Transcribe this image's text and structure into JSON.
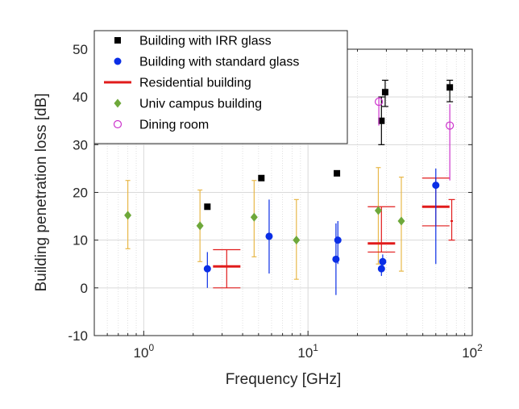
{
  "chart_data": {
    "type": "scatter",
    "xlabel": "Frequency [GHz]",
    "ylabel": "Building penetration loss [dB]",
    "xscale": "log",
    "xlim": [
      0.5,
      100
    ],
    "ylim": [
      -10,
      50
    ],
    "x_ticks": [
      {
        "value": 1,
        "base": "10",
        "exp": "0"
      },
      {
        "value": 10,
        "base": "10",
        "exp": "1"
      },
      {
        "value": 100,
        "base": "10",
        "exp": "2"
      }
    ],
    "y_ticks": [
      -10,
      0,
      10,
      20,
      30,
      40,
      50
    ],
    "grid": true,
    "legend_position": "top-left",
    "colors": {
      "irr": "#000000",
      "standard": "#0a2ee6",
      "residential": "#e11b1b",
      "campus": "#6ea83a",
      "campus_errorbar": "#e8b84a",
      "dining": "#cc33cc",
      "grid": "#d9d9d9",
      "axis": "#262626"
    },
    "series": [
      {
        "name": "Building with IRR glass",
        "marker": "square",
        "points": [
          {
            "x": 2.44,
            "y": 17
          },
          {
            "x": 5.2,
            "y": 23
          },
          {
            "x": 15,
            "y": 24
          },
          {
            "x": 28,
            "y": 35,
            "low": 30,
            "high": 40
          },
          {
            "x": 29.5,
            "y": 41,
            "low": 38,
            "high": 43.5
          },
          {
            "x": 73,
            "y": 42,
            "low": 39,
            "high": 43.5
          }
        ]
      },
      {
        "name": "Building with standard glass",
        "marker": "circle",
        "points": [
          {
            "x": 2.44,
            "y": 4,
            "low": 0,
            "high": 7.5
          },
          {
            "x": 5.8,
            "y": 10.8,
            "low": 3,
            "high": 18.5
          },
          {
            "x": 14.8,
            "y": 6,
            "low": -1.5,
            "high": 13.5
          },
          {
            "x": 15.2,
            "y": 10,
            "low": 5,
            "high": 14
          },
          {
            "x": 28,
            "y": 4,
            "low": 2.5,
            "high": 6
          },
          {
            "x": 28.5,
            "y": 5.5,
            "low": 3.5,
            "high": 7
          },
          {
            "x": 60,
            "y": 21.5,
            "low": 5,
            "high": 25
          }
        ]
      },
      {
        "name": "Residential building",
        "marker": "line",
        "points": [
          {
            "x": 3.2,
            "y": 4.5,
            "low": 0,
            "high": 8
          },
          {
            "x": 28,
            "y": 9.3,
            "low": 7.5,
            "high": 17
          },
          {
            "x": 60,
            "y": 17,
            "low": 13,
            "high": 23
          },
          {
            "x": 75,
            "y": 14,
            "low": 10,
            "high": 18.5
          }
        ]
      },
      {
        "name": "Univ campus building",
        "marker": "diamond",
        "points": [
          {
            "x": 0.8,
            "y": 15.2,
            "low": 8.2,
            "high": 22.5
          },
          {
            "x": 2.2,
            "y": 13,
            "low": 5.5,
            "high": 20.5
          },
          {
            "x": 4.7,
            "y": 14.8,
            "low": 6.5,
            "high": 22.5
          },
          {
            "x": 8.5,
            "y": 10,
            "low": 1.8,
            "high": 18.5
          },
          {
            "x": 26.8,
            "y": 16.2,
            "low": 5,
            "high": 25.2
          },
          {
            "x": 37,
            "y": 14,
            "low": 3.5,
            "high": 23.2
          }
        ]
      },
      {
        "name": "Dining room",
        "marker": "open-circle",
        "points": [
          {
            "x": 27,
            "y": 39,
            "low": 34,
            "high": 40
          },
          {
            "x": 73,
            "y": 34,
            "low": 22.5,
            "high": 38.5
          }
        ]
      }
    ]
  }
}
